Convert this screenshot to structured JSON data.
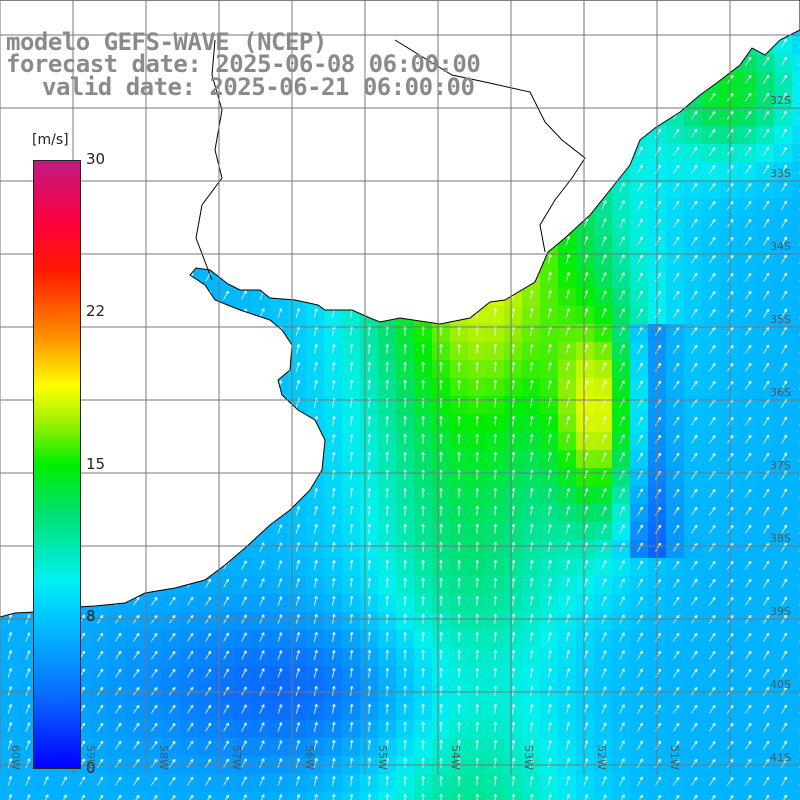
{
  "title": {
    "line1": "modelo GEFS-WAVE (NCEP)",
    "line2": "forecast date: 2025-06-08 06:00:00",
    "line3": "valid date: 2025-06-21 06:00:00"
  },
  "colorbar": {
    "unit": "[m/s]",
    "ticks": [
      "30",
      "22",
      "15",
      "8",
      "0"
    ],
    "range": [
      0,
      30
    ]
  },
  "graticule": {
    "lat_labels": [
      "32S",
      "33S",
      "34S",
      "35S",
      "36S",
      "37S",
      "38S",
      "39S",
      "40S",
      "41S"
    ],
    "lon_labels": [
      "60W",
      "59W",
      "58W",
      "57W",
      "56W",
      "55W",
      "54W",
      "53W",
      "52W",
      "51W"
    ]
  },
  "colors": {
    "ocean_low": "#0000ff",
    "ocean_mid": "#00e0ff",
    "ocean_high": "#ffff00",
    "land": "#ffffff",
    "coast": "#000000",
    "grid": "#777777",
    "title": "#8a8a8a"
  }
}
